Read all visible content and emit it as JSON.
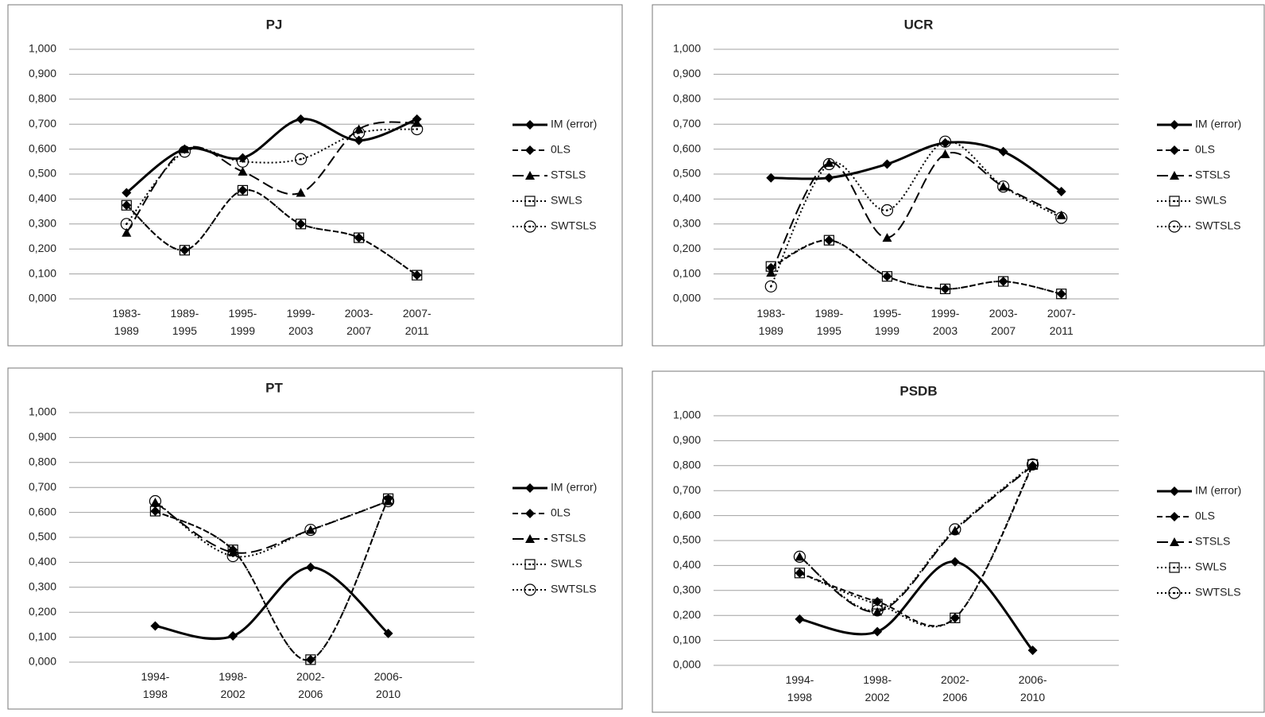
{
  "chart_data": [
    {
      "type": "line",
      "title": "PJ",
      "categories": [
        "1983-1989",
        "1989-1995",
        "1995-1999",
        "1999-2003",
        "2003-2007",
        "2007-2011"
      ],
      "ylim": [
        0,
        1
      ],
      "yticks": [
        {
          "value": 0,
          "label": "0,000"
        },
        {
          "value": 0.1,
          "label": "0,100"
        },
        {
          "value": 0.2,
          "label": "0,200"
        },
        {
          "value": 0.3,
          "label": "0,300"
        },
        {
          "value": 0.4,
          "label": "0,400"
        },
        {
          "value": 0.5,
          "label": "0,500"
        },
        {
          "value": 0.6,
          "label": "0,600"
        },
        {
          "value": 0.7,
          "label": "0,700"
        },
        {
          "value": 0.8,
          "label": "0,800"
        },
        {
          "value": 0.9,
          "label": "0,900"
        },
        {
          "value": 1,
          "label": "1,000"
        }
      ],
      "grid": true,
      "legend": "right",
      "series": [
        {
          "name": "IM (error)",
          "color": "#000000",
          "line_style": "solid",
          "marker": "diamond",
          "values": [
            0.425,
            0.6,
            0.565,
            0.72,
            0.635,
            0.72
          ]
        },
        {
          "name": "0LS",
          "color": "#000000",
          "line_style": "dashed",
          "marker": "diamond",
          "values": [
            0.375,
            0.195,
            0.435,
            0.3,
            0.245,
            0.095
          ]
        },
        {
          "name": "STSLS",
          "color": "#000000",
          "line_style": "long-dashed",
          "marker": "triangle",
          "values": [
            0.265,
            0.6,
            0.51,
            0.425,
            0.68,
            0.705
          ]
        },
        {
          "name": "SWLS",
          "color": "#000000",
          "line_style": "dotted",
          "marker": "square",
          "values": [
            0.375,
            0.195,
            0.435,
            0.3,
            0.245,
            0.095
          ]
        },
        {
          "name": "SWTSLS",
          "color": "#000000",
          "line_style": "dotted",
          "marker": "circle",
          "values": [
            0.3,
            0.59,
            0.55,
            0.56,
            0.665,
            0.68
          ]
        }
      ]
    },
    {
      "type": "line",
      "title": "UCR",
      "categories": [
        "1983-1989",
        "1989-1995",
        "1995-1999",
        "1999-2003",
        "2003-2007",
        "2007-2011"
      ],
      "ylim": [
        0,
        1
      ],
      "yticks": [
        {
          "value": 0,
          "label": "0,000"
        },
        {
          "value": 0.1,
          "label": "0,100"
        },
        {
          "value": 0.2,
          "label": "0,200"
        },
        {
          "value": 0.3,
          "label": "0,300"
        },
        {
          "value": 0.4,
          "label": "0,400"
        },
        {
          "value": 0.5,
          "label": "0,500"
        },
        {
          "value": 0.6,
          "label": "0,600"
        },
        {
          "value": 0.7,
          "label": "0,700"
        },
        {
          "value": 0.8,
          "label": "0,800"
        },
        {
          "value": 0.9,
          "label": "0,900"
        },
        {
          "value": 1,
          "label": "1,000"
        }
      ],
      "grid": true,
      "legend": "right",
      "series": [
        {
          "name": "IM (error)",
          "color": "#000000",
          "line_style": "solid",
          "marker": "diamond",
          "values": [
            0.485,
            0.485,
            0.54,
            0.625,
            0.59,
            0.43
          ]
        },
        {
          "name": "0LS",
          "color": "#000000",
          "line_style": "dashed",
          "marker": "diamond",
          "values": [
            0.125,
            0.235,
            0.09,
            0.04,
            0.07,
            0.02
          ]
        },
        {
          "name": "STSLS",
          "color": "#000000",
          "line_style": "long-dashed",
          "marker": "triangle",
          "values": [
            0.105,
            0.545,
            0.245,
            0.58,
            0.45,
            0.335
          ]
        },
        {
          "name": "SWLS",
          "color": "#000000",
          "line_style": "dotted",
          "marker": "square",
          "values": [
            0.13,
            0.235,
            0.09,
            0.04,
            0.07,
            0.02
          ]
        },
        {
          "name": "SWTSLS",
          "color": "#000000",
          "line_style": "dotted",
          "marker": "circle",
          "values": [
            0.05,
            0.54,
            0.355,
            0.63,
            0.45,
            0.325
          ]
        }
      ]
    },
    {
      "type": "line",
      "title": "PT",
      "categories": [
        "1994-1998",
        "1998-2002",
        "2002-2006",
        "2006-2010"
      ],
      "ylim": [
        0,
        1
      ],
      "yticks": [
        {
          "value": 0,
          "label": "0,000"
        },
        {
          "value": 0.1,
          "label": "0,100"
        },
        {
          "value": 0.2,
          "label": "0,200"
        },
        {
          "value": 0.3,
          "label": "0,300"
        },
        {
          "value": 0.4,
          "label": "0,400"
        },
        {
          "value": 0.5,
          "label": "0,500"
        },
        {
          "value": 0.6,
          "label": "0,600"
        },
        {
          "value": 0.7,
          "label": "0,700"
        },
        {
          "value": 0.8,
          "label": "0,800"
        },
        {
          "value": 0.9,
          "label": "0,900"
        },
        {
          "value": 1,
          "label": "1,000"
        }
      ],
      "grid": true,
      "legend": "right",
      "series": [
        {
          "name": "IM (error)",
          "color": "#000000",
          "line_style": "solid",
          "marker": "diamond",
          "values": [
            0.145,
            0.105,
            0.38,
            0.115
          ]
        },
        {
          "name": "0LS",
          "color": "#000000",
          "line_style": "dashed",
          "marker": "diamond",
          "values": [
            0.605,
            0.45,
            0.01,
            0.655
          ]
        },
        {
          "name": "STSLS",
          "color": "#000000",
          "line_style": "long-dashed",
          "marker": "triangle",
          "values": [
            0.64,
            0.44,
            0.53,
            0.645
          ]
        },
        {
          "name": "SWLS",
          "color": "#000000",
          "line_style": "dotted",
          "marker": "square",
          "values": [
            0.605,
            0.45,
            0.01,
            0.655
          ]
        },
        {
          "name": "SWTSLS",
          "color": "#000000",
          "line_style": "dotted",
          "marker": "circle",
          "values": [
            0.645,
            0.425,
            0.53,
            0.645
          ]
        }
      ]
    },
    {
      "type": "line",
      "title": "PSDB",
      "categories": [
        "1994-1998",
        "1998-2002",
        "2002-2006",
        "2006-2010"
      ],
      "ylim": [
        0,
        1
      ],
      "yticks": [
        {
          "value": 0,
          "label": "0,000"
        },
        {
          "value": 0.1,
          "label": "0,100"
        },
        {
          "value": 0.2,
          "label": "0,200"
        },
        {
          "value": 0.3,
          "label": "0,300"
        },
        {
          "value": 0.4,
          "label": "0,400"
        },
        {
          "value": 0.5,
          "label": "0,500"
        },
        {
          "value": 0.6,
          "label": "0,600"
        },
        {
          "value": 0.7,
          "label": "0,700"
        },
        {
          "value": 0.8,
          "label": "0,800"
        },
        {
          "value": 0.9,
          "label": "0,900"
        },
        {
          "value": 1,
          "label": "1,000"
        }
      ],
      "grid": true,
      "legend": "right",
      "series": [
        {
          "name": "IM (error)",
          "color": "#000000",
          "line_style": "solid",
          "marker": "diamond",
          "values": [
            0.185,
            0.135,
            0.415,
            0.06
          ]
        },
        {
          "name": "0LS",
          "color": "#000000",
          "line_style": "dashed",
          "marker": "diamond",
          "values": [
            0.37,
            0.255,
            0.19,
            0.8
          ]
        },
        {
          "name": "STSLS",
          "color": "#000000",
          "line_style": "long-dashed",
          "marker": "triangle",
          "values": [
            0.435,
            0.215,
            0.54,
            0.8
          ]
        },
        {
          "name": "SWLS",
          "color": "#000000",
          "line_style": "dotted",
          "marker": "square",
          "values": [
            0.37,
            0.245,
            0.19,
            0.805
          ]
        },
        {
          "name": "SWTSLS",
          "color": "#000000",
          "line_style": "dotted",
          "marker": "circle",
          "values": [
            0.435,
            0.22,
            0.545,
            0.805
          ]
        }
      ]
    }
  ]
}
